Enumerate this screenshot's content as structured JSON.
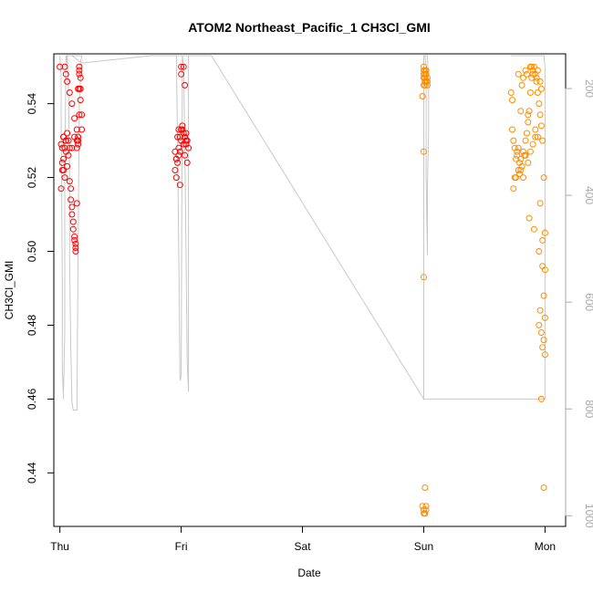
{
  "chart_data": {
    "type": "scatter",
    "title": "ATOM2 Northeast_Pacific_1 CH3Cl_GMI",
    "xlabel": "Date",
    "ylabel": "CH3Cl_GMI",
    "xlim": [
      -0.05,
      4.17
    ],
    "ylim": [
      0.4255,
      0.5535
    ],
    "x_ticks": [
      {
        "value": 0,
        "label": "Thu"
      },
      {
        "value": 1,
        "label": "Fri"
      },
      {
        "value": 2,
        "label": "Sat"
      },
      {
        "value": 3,
        "label": "Sun"
      },
      {
        "value": 4,
        "label": "Mon"
      }
    ],
    "y_ticks": [
      0.44,
      0.46,
      0.48,
      0.5,
      0.52,
      0.54
    ],
    "right_axis": {
      "ticks": [
        200,
        400,
        600,
        800,
        1000
      ],
      "lim": [
        1020,
        135
      ],
      "color": "#a9a9a9"
    },
    "series": [
      {
        "color": "#ff0000",
        "x": [
          0.0,
          0.01,
          0.01,
          0.02,
          0.02,
          0.03,
          0.03,
          0.04,
          0.04,
          0.05,
          0.05,
          0.06,
          0.06,
          0.07,
          0.07,
          0.08,
          0.08,
          0.09,
          0.09,
          0.1,
          0.1,
          0.11,
          0.11,
          0.12,
          0.12,
          0.13,
          0.13,
          0.13,
          0.14,
          0.14,
          0.14,
          0.15,
          0.15,
          0.15,
          0.15,
          0.16,
          0.16,
          0.16,
          0.16,
          0.16,
          0.17,
          0.17,
          0.17,
          0.18,
          0.18,
          0.04,
          0.05,
          0.06,
          0.08,
          0.1,
          0.12,
          0.02,
          0.03,
          0.14,
          0.03,
          0.05,
          0.12,
          0.1,
          0.95,
          0.96,
          0.97,
          0.98,
          0.99,
          1.0,
          1.01,
          1.02,
          1.03,
          1.04,
          1.05,
          1.06,
          0.97,
          0.98,
          1.0,
          1.02,
          0.96,
          0.99,
          1.03,
          1.04,
          0.95,
          1.05,
          0.98,
          1.01,
          1.04,
          0.99,
          0.96,
          1.0,
          1.02,
          1.03,
          1.0
        ],
        "y": [
          0.55,
          0.517,
          0.529,
          0.522,
          0.528,
          0.531,
          0.525,
          0.52,
          0.528,
          0.53,
          0.527,
          0.532,
          0.523,
          0.53,
          0.526,
          0.528,
          0.519,
          0.517,
          0.514,
          0.512,
          0.51,
          0.508,
          0.506,
          0.504,
          0.503,
          0.502,
          0.501,
          0.5,
          0.513,
          0.528,
          0.533,
          0.531,
          0.529,
          0.53,
          0.544,
          0.537,
          0.544,
          0.548,
          0.55,
          0.549,
          0.547,
          0.544,
          0.541,
          0.537,
          0.533,
          0.55,
          0.548,
          0.546,
          0.543,
          0.54,
          0.536,
          0.524,
          0.522,
          0.53,
          0.531,
          0.53,
          0.531,
          0.528,
          0.527,
          0.525,
          0.524,
          0.528,
          0.531,
          0.533,
          0.534,
          0.529,
          0.526,
          0.532,
          0.53,
          0.528,
          0.531,
          0.533,
          0.53,
          0.532,
          0.525,
          0.527,
          0.531,
          0.529,
          0.522,
          0.524,
          0.526,
          0.533,
          0.53,
          0.518,
          0.52,
          0.548,
          0.55,
          0.545,
          0.55
        ]
      },
      {
        "color": "#ff8c00",
        "x": [
          3.0,
          3.0,
          3.0,
          3.01,
          3.01,
          3.01,
          3.02,
          3.02,
          3.03,
          3.03,
          3.03,
          2.99,
          3.0,
          3.0,
          3.01,
          2.99,
          3.0,
          3.01,
          3.02,
          3.0,
          3.01,
          3.02,
          3.0,
          3.0,
          3.01,
          3.01,
          3.0,
          3.02,
          3.0,
          3.01,
          3.72,
          3.73,
          3.74,
          3.75,
          3.76,
          3.77,
          3.78,
          3.79,
          3.8,
          3.81,
          3.82,
          3.83,
          3.84,
          3.85,
          3.86,
          3.87,
          3.88,
          3.89,
          3.9,
          3.91,
          3.92,
          3.93,
          3.94,
          3.95,
          3.96,
          3.97,
          3.98,
          3.99,
          4.0,
          3.74,
          3.76,
          3.78,
          3.8,
          3.82,
          3.84,
          3.86,
          3.88,
          3.9,
          3.92,
          3.94,
          3.96,
          3.98,
          4.0,
          3.75,
          3.79,
          3.83,
          3.87,
          3.91,
          3.95,
          3.99,
          3.77,
          3.81,
          3.85,
          3.89,
          3.93,
          3.97,
          4.0,
          3.73,
          3.78,
          3.84,
          3.9,
          3.96,
          3.8,
          3.86,
          3.92,
          3.98,
          3.82,
          3.88,
          3.94,
          3.95,
          3.97,
          3.99,
          3.96,
          3.98,
          4.0,
          3.97,
          3.99
        ],
        "y": [
          0.549,
          0.548,
          0.547,
          0.546,
          0.545,
          0.547,
          0.548,
          0.549,
          0.546,
          0.547,
          0.545,
          0.542,
          0.527,
          0.493,
          0.436,
          0.431,
          0.43,
          0.429,
          0.43,
          0.429,
          0.429,
          0.431,
          0.43,
          0.55,
          0.549,
          0.548,
          0.547,
          0.546,
          0.545,
          0.546,
          0.543,
          0.533,
          0.53,
          0.528,
          0.525,
          0.526,
          0.528,
          0.521,
          0.522,
          0.523,
          0.52,
          0.526,
          0.53,
          0.532,
          0.535,
          0.538,
          0.543,
          0.547,
          0.549,
          0.55,
          0.548,
          0.546,
          0.543,
          0.54,
          0.537,
          0.534,
          0.53,
          0.52,
          0.505,
          0.517,
          0.52,
          0.522,
          0.525,
          0.527,
          0.526,
          0.524,
          0.527,
          0.529,
          0.533,
          0.531,
          0.513,
          0.503,
          0.495,
          0.52,
          0.524,
          0.526,
          0.509,
          0.506,
          0.5,
          0.488,
          0.527,
          0.545,
          0.548,
          0.55,
          0.547,
          0.544,
          0.482,
          0.541,
          0.548,
          0.549,
          0.548,
          0.546,
          0.538,
          0.537,
          0.531,
          0.496,
          0.547,
          0.55,
          0.549,
          0.48,
          0.478,
          0.476,
          0.484,
          0.474,
          0.472,
          0.46,
          0.436
        ]
      }
    ],
    "line": {
      "color": "#c8c8c8",
      "x": [
        0.0,
        0.01,
        0.01,
        0.02,
        0.02,
        0.03,
        0.03,
        0.04,
        0.04,
        0.05,
        0.06,
        0.07,
        0.08,
        0.08,
        0.09,
        0.1,
        0.11,
        0.12,
        0.13,
        0.14,
        0.15,
        0.16,
        0.17,
        0.17,
        0.18,
        0.18,
        0.06,
        0.06,
        0.05,
        0.07,
        0.1,
        0.18,
        0.75,
        0.93,
        0.95,
        0.96,
        0.97,
        0.98,
        0.99,
        1.0,
        1.01,
        1.02,
        1.03,
        1.04,
        1.05,
        1.06,
        1.06,
        1.05,
        1.04,
        1.03,
        1.02,
        1.01,
        1.0,
        0.99,
        0.98,
        0.97,
        0.96,
        0.95,
        0.8,
        0.75,
        0.75,
        0.75,
        0.76,
        0.76,
        0.78,
        0.8,
        0.8,
        0.84,
        0.84,
        0.91,
        0.91,
        0.93,
        0.93,
        0.95,
        1.25,
        3.0,
        3.0,
        3.0,
        3.01,
        3.02,
        3.03,
        3.04,
        3.04,
        3.03,
        3.03,
        3.02,
        3.02,
        3.01,
        3.0,
        3.0,
        3.0,
        3.0,
        4.0,
        4.0,
        3.99,
        3.98,
        3.97,
        3.96,
        3.95,
        3.94,
        3.93,
        3.92,
        3.91,
        3.9,
        3.89,
        3.88,
        3.87,
        3.86,
        3.85,
        3.84,
        3.83,
        3.82,
        3.81,
        3.8,
        3.79,
        3.78,
        3.77,
        3.76,
        3.75,
        3.74,
        3.73,
        3.72,
        3.73,
        3.74,
        3.75,
        3.76,
        3.77,
        3.78,
        3.79,
        3.8,
        3.81,
        3.82,
        3.83,
        3.84,
        3.85,
        3.86,
        3.87,
        3.88,
        3.89,
        3.9,
        3.91,
        3.92,
        3.93,
        3.94,
        3.95,
        3.96,
        3.97,
        3.98,
        3.99,
        4.0
      ],
      "y": [
        0.553,
        0.547,
        0.538,
        0.492,
        0.468,
        0.46,
        0.462,
        0.478,
        0.521,
        0.553,
        0.553,
        0.545,
        0.52,
        0.497,
        0.474,
        0.459,
        0.457,
        0.457,
        0.457,
        0.457,
        0.5,
        0.54,
        0.547,
        0.551,
        0.553,
        0.553,
        0.553,
        0.551,
        0.553,
        0.553,
        0.553,
        0.551,
        0.553,
        0.553,
        0.553,
        0.553,
        0.529,
        0.501,
        0.465,
        0.466,
        0.553,
        0.553,
        0.553,
        0.553,
        0.553,
        0.553,
        0.462,
        0.47,
        0.5,
        0.529,
        0.55,
        0.553,
        0.553,
        0.553,
        0.553,
        0.553,
        0.553,
        0.553,
        0.553,
        0.553,
        0.553,
        0.553,
        0.553,
        0.553,
        0.553,
        0.553,
        0.553,
        0.553,
        0.553,
        0.553,
        0.553,
        0.553,
        0.553,
        0.553,
        0.553,
        0.46,
        0.46,
        0.553,
        0.553,
        0.553,
        0.553,
        0.546,
        0.532,
        0.518,
        0.499,
        0.52,
        0.55,
        0.553,
        0.553,
        0.553,
        0.553,
        0.46,
        0.46,
        0.55,
        0.553,
        0.553,
        0.553,
        0.553,
        0.553,
        0.553,
        0.553,
        0.553,
        0.553,
        0.553,
        0.553,
        0.553,
        0.553,
        0.553,
        0.553,
        0.553,
        0.553,
        0.553,
        0.553,
        0.553,
        0.553,
        0.553,
        0.553,
        0.553,
        0.553,
        0.553,
        0.553,
        0.553,
        0.553,
        0.553,
        0.553,
        0.553,
        0.553,
        0.553,
        0.553,
        0.553,
        0.553,
        0.553,
        0.553,
        0.553,
        0.553,
        0.553,
        0.553,
        0.553,
        0.553,
        0.553,
        0.553,
        0.553,
        0.553,
        0.553,
        0.553,
        0.553,
        0.553,
        0.553,
        0.553,
        0.553
      ]
    }
  }
}
